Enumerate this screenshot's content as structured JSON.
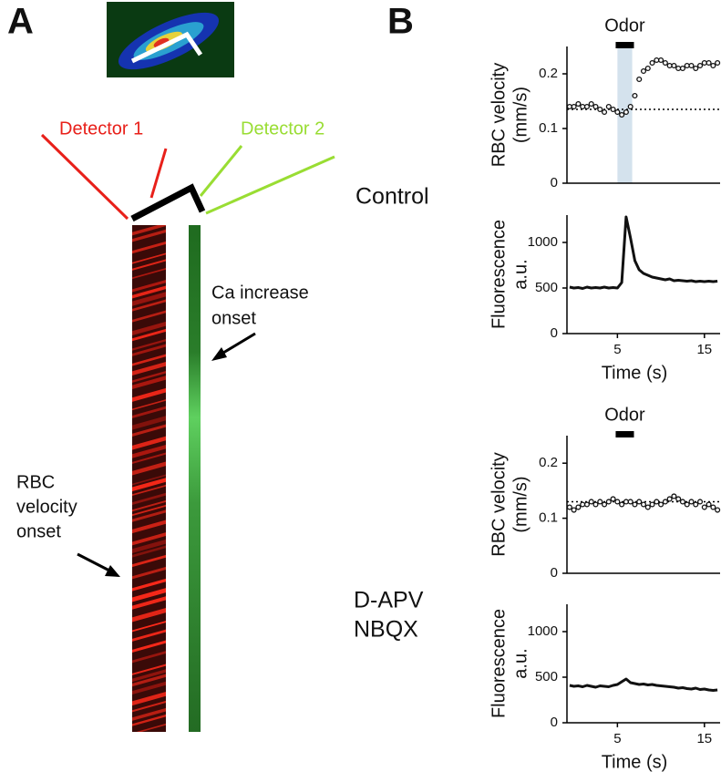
{
  "panel_labels": [
    "A",
    "B"
  ],
  "panel_a": {
    "detector_1": "Detector 1",
    "detector_2": "Detector 2",
    "ca_label": [
      "Ca increase",
      "onset"
    ],
    "rbc_label": [
      "RBC",
      "velocity",
      "onset"
    ]
  },
  "conditions": {
    "control": "Control",
    "drug": [
      "D-APV",
      "NBQX"
    ]
  },
  "chart_data": [
    {
      "type": "scatter",
      "ylabel": [
        "RBC velocity",
        "(mm/s)"
      ],
      "annotation": "Odor",
      "odor_span": [
        4.8,
        6.9
      ],
      "highlight": [
        5,
        6.7
      ],
      "baseline": 0.135,
      "xlim": [
        -0.8,
        16.8
      ],
      "ylim": [
        0,
        0.25
      ],
      "yticks": [
        0,
        0.1,
        0.2
      ],
      "color": "#111111",
      "x": [
        -0.5,
        0,
        0.5,
        1,
        1.5,
        2,
        2.5,
        3,
        3.5,
        4,
        4.5,
        5,
        5.5,
        6,
        6.5,
        7,
        7.5,
        8,
        8.5,
        9,
        9.5,
        10,
        10.5,
        11,
        11.5,
        12,
        12.5,
        13,
        13.5,
        14,
        14.5,
        15,
        15.5,
        16,
        16.5
      ],
      "values": [
        0.14,
        0.14,
        0.145,
        0.14,
        0.14,
        0.145,
        0.14,
        0.135,
        0.13,
        0.14,
        0.135,
        0.13,
        0.125,
        0.13,
        0.14,
        0.16,
        0.19,
        0.205,
        0.21,
        0.22,
        0.225,
        0.225,
        0.22,
        0.215,
        0.215,
        0.21,
        0.21,
        0.215,
        0.215,
        0.21,
        0.215,
        0.22,
        0.22,
        0.215,
        0.22
      ]
    },
    {
      "type": "line",
      "ylabel": [
        "Fluorescence",
        "a.u."
      ],
      "xlabel": "Time (s)",
      "xlim": [
        -0.8,
        16.8
      ],
      "xticks": [
        5,
        15
      ],
      "ylim": [
        0,
        1300
      ],
      "yticks": [
        0,
        500,
        1000
      ],
      "color": "#111111",
      "x": [
        -0.5,
        0,
        0.5,
        1,
        1.5,
        2,
        2.5,
        3,
        3.5,
        4,
        4.5,
        5,
        5.5,
        6,
        6.5,
        7,
        7.5,
        8,
        8.5,
        9,
        9.5,
        10,
        10.5,
        11,
        11.5,
        12,
        12.5,
        13,
        13.5,
        14,
        14.5,
        15,
        15.5,
        16,
        16.5
      ],
      "values": [
        510,
        500,
        505,
        495,
        510,
        500,
        505,
        500,
        510,
        500,
        505,
        500,
        560,
        1280,
        1050,
        800,
        700,
        660,
        640,
        620,
        610,
        600,
        590,
        600,
        580,
        585,
        580,
        575,
        580,
        570,
        575,
        570,
        575,
        570,
        575
      ]
    },
    {
      "type": "scatter",
      "ylabel": [
        "RBC velocity",
        "(mm/s)"
      ],
      "annotation": "Odor",
      "odor_span": [
        4.8,
        6.9
      ],
      "baseline": 0.13,
      "xlim": [
        -0.8,
        16.8
      ],
      "ylim": [
        0,
        0.25
      ],
      "yticks": [
        0,
        0.1,
        0.2
      ],
      "color": "#111111",
      "x": [
        -0.5,
        0,
        0.5,
        1,
        1.5,
        2,
        2.5,
        3,
        3.5,
        4,
        4.5,
        5,
        5.5,
        6,
        6.5,
        7,
        7.5,
        8,
        8.5,
        9,
        9.5,
        10,
        10.5,
        11,
        11.5,
        12,
        12.5,
        13,
        13.5,
        14,
        14.5,
        15,
        15.5,
        16,
        16.5
      ],
      "values": [
        0.12,
        0.115,
        0.12,
        0.125,
        0.125,
        0.13,
        0.125,
        0.13,
        0.125,
        0.13,
        0.135,
        0.13,
        0.125,
        0.13,
        0.13,
        0.125,
        0.13,
        0.125,
        0.12,
        0.125,
        0.13,
        0.125,
        0.13,
        0.135,
        0.14,
        0.135,
        0.13,
        0.125,
        0.13,
        0.125,
        0.13,
        0.12,
        0.125,
        0.12,
        0.115
      ]
    },
    {
      "type": "line",
      "ylabel": [
        "Fluorescence",
        "a.u."
      ],
      "xlabel": "Time (s)",
      "xlim": [
        -0.8,
        16.8
      ],
      "xticks": [
        5,
        15
      ],
      "ylim": [
        0,
        1300
      ],
      "yticks": [
        0,
        500,
        1000
      ],
      "color": "#111111",
      "x": [
        -0.5,
        0,
        0.5,
        1,
        1.5,
        2,
        2.5,
        3,
        3.5,
        4,
        4.5,
        5,
        5.5,
        6,
        6.5,
        7,
        7.5,
        8,
        8.5,
        9,
        9.5,
        10,
        10.5,
        11,
        11.5,
        12,
        12.5,
        13,
        13.5,
        14,
        14.5,
        15,
        15.5,
        16,
        16.5
      ],
      "values": [
        410,
        400,
        405,
        395,
        410,
        400,
        390,
        405,
        400,
        395,
        410,
        420,
        450,
        480,
        440,
        430,
        420,
        425,
        415,
        420,
        410,
        405,
        400,
        395,
        390,
        380,
        385,
        375,
        370,
        380,
        365,
        370,
        360,
        355,
        360
      ]
    }
  ]
}
